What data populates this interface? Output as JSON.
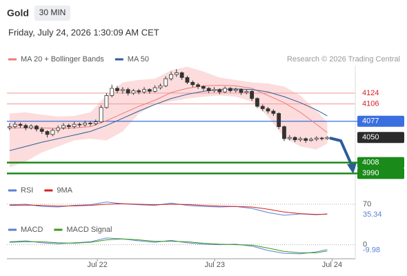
{
  "header": {
    "symbol": "Gold",
    "interval": "30 MIN",
    "datetime": "Friday, July 24, 2026 1:30:09 AM CET",
    "credit": "Research © 2026 Trading Central"
  },
  "chart_data": [
    {
      "type": "candlestick",
      "up_color": "#ffffff",
      "down_color": "#333333",
      "candles": [
        [
          4066,
          4074,
          4062,
          4068
        ],
        [
          4068,
          4076,
          4065,
          4072
        ],
        [
          4072,
          4075,
          4066,
          4070
        ],
        [
          4070,
          4073,
          4062,
          4066
        ],
        [
          4066,
          4072,
          4063,
          4069
        ],
        [
          4069,
          4071,
          4060,
          4064
        ],
        [
          4064,
          4067,
          4056,
          4060
        ],
        [
          4060,
          4062,
          4050,
          4055
        ],
        [
          4055,
          4065,
          4052,
          4062
        ],
        [
          4062,
          4070,
          4058,
          4066
        ],
        [
          4066,
          4074,
          4063,
          4070
        ],
        [
          4070,
          4073,
          4064,
          4068
        ],
        [
          4068,
          4076,
          4065,
          4072
        ],
        [
          4072,
          4075,
          4067,
          4071
        ],
        [
          4071,
          4078,
          4068,
          4074
        ],
        [
          4074,
          4077,
          4069,
          4073
        ],
        [
          4073,
          4080,
          4070,
          4076
        ],
        [
          4076,
          4104,
          4074,
          4100
        ],
        [
          4100,
          4124,
          4098,
          4120
        ],
        [
          4120,
          4138,
          4117,
          4132
        ],
        [
          4132,
          4136,
          4124,
          4128
        ],
        [
          4128,
          4134,
          4123,
          4130
        ],
        [
          4130,
          4133,
          4120,
          4124
        ],
        [
          4124,
          4131,
          4121,
          4128
        ],
        [
          4128,
          4131,
          4122,
          4126
        ],
        [
          4126,
          4134,
          4123,
          4130
        ],
        [
          4130,
          4132,
          4123,
          4127
        ],
        [
          4127,
          4137,
          4125,
          4133
        ],
        [
          4133,
          4140,
          4130,
          4136
        ],
        [
          4136,
          4152,
          4134,
          4148
        ],
        [
          4148,
          4160,
          4145,
          4155
        ],
        [
          4155,
          4164,
          4151,
          4158
        ],
        [
          4158,
          4160,
          4146,
          4150
        ],
        [
          4150,
          4153,
          4139,
          4142
        ],
        [
          4142,
          4145,
          4134,
          4138
        ],
        [
          4138,
          4141,
          4131,
          4135
        ],
        [
          4135,
          4137,
          4128,
          4132
        ],
        [
          4132,
          4134,
          4124,
          4128
        ],
        [
          4128,
          4134,
          4125,
          4130
        ],
        [
          4130,
          4132,
          4122,
          4126
        ],
        [
          4126,
          4135,
          4124,
          4132
        ],
        [
          4132,
          4134,
          4125,
          4128
        ],
        [
          4128,
          4133,
          4125,
          4130
        ],
        [
          4130,
          4132,
          4121,
          4125
        ],
        [
          4125,
          4130,
          4122,
          4127
        ],
        [
          4127,
          4129,
          4111,
          4115
        ],
        [
          4115,
          4117,
          4099,
          4102
        ],
        [
          4102,
          4105,
          4094,
          4098
        ],
        [
          4098,
          4101,
          4090,
          4094
        ],
        [
          4094,
          4097,
          4086,
          4090
        ],
        [
          4090,
          4092,
          4064,
          4068
        ],
        [
          4068,
          4070,
          4044,
          4048
        ],
        [
          4048,
          4054,
          4045,
          4050
        ],
        [
          4050,
          4052,
          4042,
          4046
        ],
        [
          4046,
          4051,
          4043,
          4048
        ],
        [
          4048,
          4050,
          4041,
          4045
        ],
        [
          4045,
          4050,
          4043,
          4047
        ],
        [
          4047,
          4052,
          4044,
          4049
        ],
        [
          4049,
          4051,
          4045,
          4048
        ],
        [
          4048,
          4052,
          4046,
          4050
        ]
      ],
      "line_x": [
        0,
        3,
        6,
        9,
        12,
        15,
        18,
        21,
        24,
        27,
        30,
        33,
        36,
        39,
        42,
        45,
        48,
        51,
        54,
        57,
        59
      ],
      "series": [
        {
          "name": "MA 20 + Bollinger Bands",
          "color": "#f07878",
          "band_color": "#fbd3d3",
          "values": [
            4066,
            4066,
            4066,
            4065,
            4066,
            4068,
            4078,
            4090,
            4102,
            4112,
            4125,
            4132,
            4136,
            4137,
            4136,
            4132,
            4120,
            4108,
            4092,
            4072,
            4058
          ],
          "upper": [
            4090,
            4092,
            4088,
            4085,
            4086,
            4092,
            4120,
            4142,
            4146,
            4148,
            4162,
            4168,
            4160,
            4150,
            4146,
            4142,
            4140,
            4135,
            4120,
            4095,
            4075
          ],
          "lower": [
            4000,
            4010,
            4025,
            4035,
            4045,
            4048,
            4045,
            4060,
            4090,
            4105,
            4110,
            4115,
            4118,
            4120,
            4118,
            4110,
            4085,
            4050,
            4035,
            4030,
            4040
          ]
        },
        {
          "name": "MA 50",
          "color": "#2d5c99",
          "values": [
            4028,
            4035,
            4042,
            4048,
            4054,
            4060,
            4070,
            4082,
            4094,
            4105,
            4115,
            4122,
            4127,
            4130,
            4131,
            4130,
            4126,
            4118,
            4108,
            4096,
            4086
          ]
        }
      ],
      "levels": [
        {
          "value": 4124,
          "color": "#f4a0a0",
          "text_color": "#d62020",
          "style": "line"
        },
        {
          "value": 4106,
          "color": "#f4a0a0",
          "text_color": "#d62020",
          "style": "line"
        },
        {
          "value": 4077,
          "color": "#3a6fe0",
          "text_color": "#ffffff",
          "style": "box"
        },
        {
          "value": 4050,
          "color": "#2b2b2b",
          "text_color": "#ffffff",
          "style": "box",
          "hidden_line": true
        },
        {
          "value": 4008,
          "color": "#1a8a1a",
          "text_color": "#ffffff",
          "style": "box"
        },
        {
          "value": 3990,
          "color": "#1a8a1a",
          "text_color": "#ffffff",
          "style": "box"
        }
      ],
      "xlim": [
        -0.5,
        64.2
      ],
      "xticks": [
        {
          "value": 16.3,
          "label": "Jul 22"
        },
        {
          "value": 38.1,
          "label": "Jul 23"
        },
        {
          "value": 59.9,
          "label": "Jul 24"
        }
      ],
      "ylim": [
        3980,
        4170
      ]
    },
    {
      "type": "line",
      "line_x": [
        0,
        3,
        6,
        9,
        12,
        15,
        18,
        21,
        24,
        27,
        30,
        33,
        36,
        39,
        42,
        45,
        48,
        51,
        54,
        57,
        59
      ],
      "xlim": [
        -0.5,
        64.2
      ],
      "series": [
        {
          "name": "RSI",
          "color": "#5b7fd6",
          "values": [
            68,
            70,
            62,
            60,
            66,
            68,
            78,
            72,
            68,
            66,
            74,
            66,
            62,
            60,
            62,
            55,
            40,
            30,
            35,
            32,
            35.34
          ],
          "last_label": true
        },
        {
          "name": "9MA",
          "color": "#d62020",
          "values": [
            66,
            67,
            66,
            63,
            64,
            66,
            70,
            72,
            70,
            68,
            70,
            69,
            66,
            63,
            62,
            60,
            52,
            42,
            36,
            33,
            34
          ]
        }
      ],
      "ylim": [
        0,
        100
      ],
      "yticks": [
        70
      ]
    },
    {
      "type": "line",
      "line_x": [
        0,
        3,
        6,
        9,
        12,
        15,
        18,
        21,
        24,
        27,
        30,
        33,
        36,
        39,
        42,
        45,
        48,
        51,
        54,
        57,
        59
      ],
      "xlim": [
        -0.5,
        64.2
      ],
      "series": [
        {
          "name": "MACD",
          "color": "#5b7fd6",
          "values": [
            6,
            8,
            4,
            2,
            4,
            6,
            14,
            12,
            8,
            5,
            9,
            4,
            1,
            0,
            1,
            -3,
            -12,
            -18,
            -19,
            -15,
            -9.98
          ],
          "last_label": true
        },
        {
          "name": "MACD Signal",
          "color": "#3a9a1a",
          "values": [
            5,
            6,
            6,
            4,
            3,
            5,
            10,
            12,
            10,
            7,
            7,
            6,
            3,
            1,
            0,
            -1,
            -7,
            -14,
            -17,
            -17,
            -13
          ]
        }
      ],
      "ylim": [
        -25,
        21
      ],
      "yticks": [
        0
      ]
    }
  ]
}
